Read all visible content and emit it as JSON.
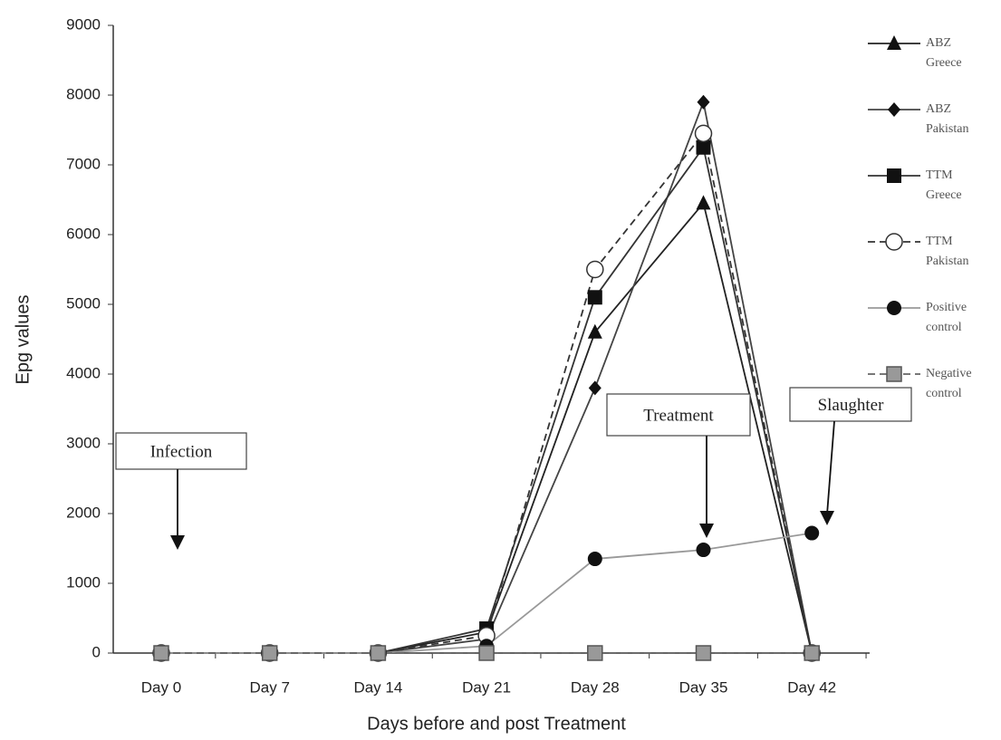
{
  "chart_data": {
    "type": "line",
    "x_label": "Days before and  post Treatment",
    "y_label": "Epg values",
    "categories": [
      "Day 0",
      "Day 7",
      "Day 14",
      "Day 21",
      "Day 28",
      "Day 35",
      "Day 42"
    ],
    "ylim": [
      0,
      9000
    ],
    "yticks": [
      0,
      1000,
      2000,
      3000,
      4000,
      5000,
      6000,
      7000,
      8000,
      9000
    ],
    "series": [
      {
        "name": "ABZ Greece",
        "color": "#111111",
        "line_color": "#222222",
        "marker": "triangle",
        "dashed": false,
        "values": [
          0,
          0,
          0,
          300,
          4600,
          6450,
          0
        ]
      },
      {
        "name": "ABZ Pakistan",
        "color": "#111111",
        "line_color": "#444444",
        "marker": "diamond",
        "dashed": false,
        "values": [
          0,
          0,
          0,
          200,
          3800,
          7900,
          0
        ]
      },
      {
        "name": "TTM Greece",
        "color": "#111111",
        "line_color": "#333333",
        "marker": "square",
        "dashed": false,
        "values": [
          0,
          0,
          0,
          350,
          5100,
          7250,
          0
        ]
      },
      {
        "name": "TTM Pakistan",
        "color": "#333333",
        "line_color": "#333333",
        "marker": "open-circle",
        "dashed": true,
        "values": [
          0,
          0,
          0,
          250,
          5500,
          7450,
          0
        ]
      },
      {
        "name": "Positive control",
        "color": "#111111",
        "line_color": "#999999",
        "marker": "circle",
        "dashed": false,
        "values": [
          0,
          0,
          0,
          100,
          1350,
          1480,
          1720
        ]
      },
      {
        "name": "Negative control",
        "color": "#999999",
        "line_color": "#666666",
        "marker": "gray-square",
        "dashed": true,
        "values": [
          0,
          0,
          0,
          0,
          0,
          0,
          0
        ]
      }
    ],
    "annotations": [
      {
        "text": "Infection"
      },
      {
        "text": "Treatment"
      },
      {
        "text": "Slaughter"
      }
    ]
  }
}
